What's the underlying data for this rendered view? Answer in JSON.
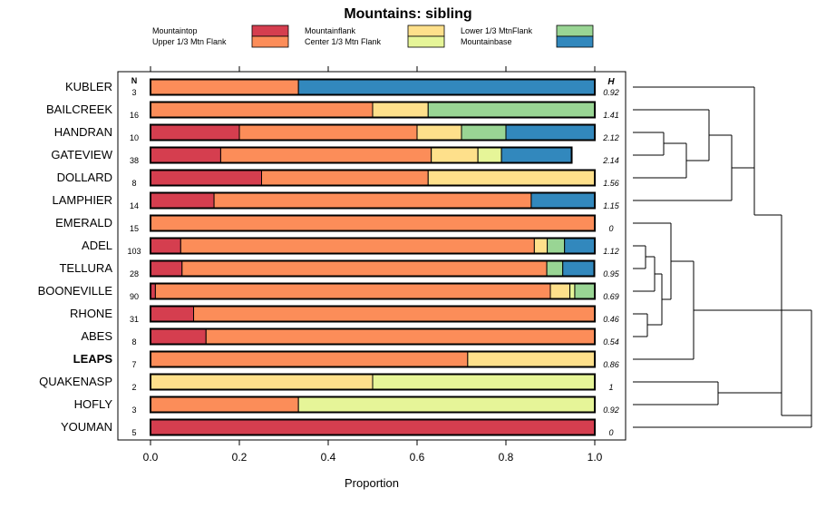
{
  "chart_data": {
    "type": "bar",
    "orientation": "horizontal",
    "stacked": true,
    "title": "Mountains: sibling",
    "xlabel": "Proportion",
    "ylabel": "",
    "xlim": [
      0,
      1
    ],
    "x_ticks": [
      "0.0",
      "0.2",
      "0.4",
      "0.6",
      "0.8",
      "1.0"
    ],
    "n_header": "N",
    "h_header": "H",
    "highlighted_category": "LEAPS",
    "categories": [
      "KUBLER",
      "BAILCREEK",
      "HANDRAN",
      "GATEVIEW",
      "DOLLARD",
      "LAMPHIER",
      "EMERALD",
      "ADEL",
      "TELLURA",
      "BOONEVILLE",
      "RHONE",
      "ABES",
      "LEAPS",
      "QUAKENASP",
      "HOFLY",
      "YOUMAN"
    ],
    "n_values": [
      "3",
      "16",
      "10",
      "38",
      "8",
      "14",
      "15",
      "103",
      "28",
      "90",
      "31",
      "8",
      "7",
      "2",
      "3",
      "5"
    ],
    "h_values": [
      "0.92",
      "1.41",
      "2.12",
      "2.14",
      "1.56",
      "1.15",
      "0",
      "1.12",
      "0.95",
      "0.69",
      "0.46",
      "0.54",
      "0.86",
      "1",
      "0.92",
      "0"
    ],
    "series": [
      {
        "name": "Mountaintop",
        "color": "#d53e4f",
        "values": [
          0,
          0,
          0.2,
          0.158,
          0.25,
          0.143,
          0,
          0.068,
          0.071,
          0.011,
          0.097,
          0.125,
          0,
          0,
          0,
          1
        ]
      },
      {
        "name": "Upper 1/3 Mtn Flank",
        "color": "#fc8d59",
        "values": [
          0.333,
          0.5,
          0.4,
          0.474,
          0.375,
          0.714,
          1,
          0.796,
          0.821,
          0.889,
          0.903,
          0.875,
          0.714,
          0,
          0.333,
          0
        ]
      },
      {
        "name": "Mountainflank",
        "color": "#fee08b",
        "values": [
          0,
          0.125,
          0.1,
          0.105,
          0.375,
          0,
          0,
          0.029,
          0,
          0.044,
          0,
          0,
          0.286,
          0.5,
          0,
          0
        ]
      },
      {
        "name": "Center 1/3 Mtn Flank",
        "color": "#e6f598",
        "values": [
          0,
          0,
          0,
          0.053,
          0,
          0,
          0,
          0,
          0,
          0.011,
          0,
          0,
          0,
          0.5,
          0.667,
          0
        ]
      },
      {
        "name": "Lower 1/3 MtnFlank",
        "color": "#99d594",
        "values": [
          0,
          0.375,
          0.1,
          0,
          0,
          0,
          0,
          0.039,
          0.036,
          0.045,
          0,
          0,
          0,
          0,
          0,
          0
        ]
      },
      {
        "name": "Mountainbase",
        "color": "#3288bd",
        "values": [
          0.667,
          0,
          0.2,
          0.158,
          0,
          0.143,
          0,
          0.068,
          0.071,
          0,
          0,
          0,
          0,
          0,
          0,
          0
        ]
      }
    ]
  }
}
